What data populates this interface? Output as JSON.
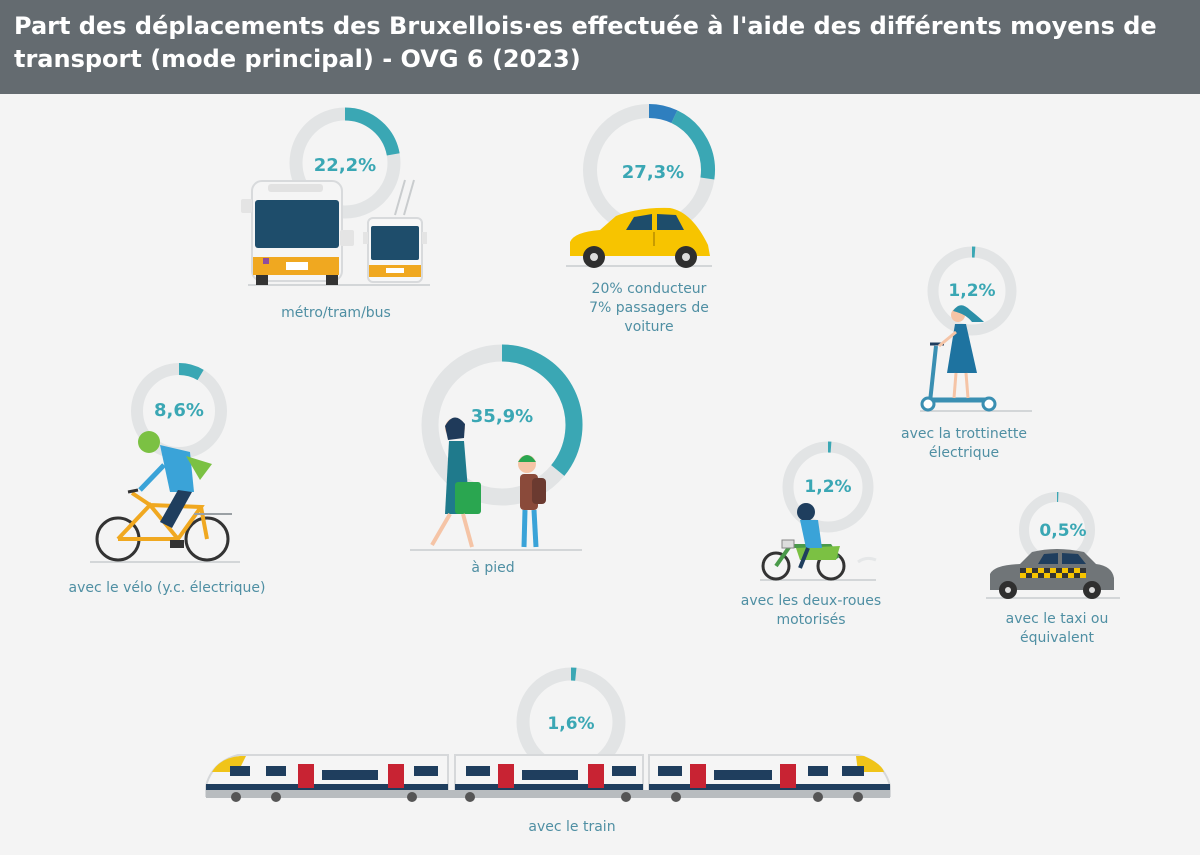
{
  "title": "Part des déplacements des Bruxellois·es effectuée à l'aide des différents moyens de transport (mode principal) - OVG 6 (2023)",
  "colors": {
    "header_bg": "#646b70",
    "ring_track": "#e2e4e5",
    "ring_fill": "#3aa7b4",
    "ring_fill_dark": "#2f7fbf",
    "label": "#3aa7b4",
    "caption": "#4f8fa3"
  },
  "chart_data": {
    "type": "donut",
    "unit": "%",
    "items": [
      {
        "key": "public",
        "value": 22.2,
        "label": "22,2%",
        "caption": [
          "métro/tram/bus"
        ],
        "icon": "bus-tram-icon"
      },
      {
        "key": "car",
        "value": 27.3,
        "label": "27,3%",
        "caption": [
          "20% conducteur",
          "7% passagers de",
          "voiture"
        ],
        "icon": "car-icon",
        "segments": [
          {
            "name": "conducteur",
            "value": 20
          },
          {
            "name": "passagers de voiture",
            "value": 7
          }
        ]
      },
      {
        "key": "scooter",
        "value": 1.2,
        "label": "1,2%",
        "caption": [
          "avec la trottinette",
          "électrique"
        ],
        "icon": "electric-scooter-icon"
      },
      {
        "key": "bike",
        "value": 8.6,
        "label": "8,6%",
        "caption": [
          "avec le vélo (y.c. électrique)"
        ],
        "icon": "bicycle-icon"
      },
      {
        "key": "walk",
        "value": 35.9,
        "label": "35,9%",
        "caption": [
          "à pied"
        ],
        "icon": "pedestrians-icon"
      },
      {
        "key": "moto",
        "value": 1.2,
        "label": "1,2%",
        "caption": [
          "avec les deux-roues",
          "motorisés"
        ],
        "icon": "motorbike-icon"
      },
      {
        "key": "taxi",
        "value": 0.5,
        "label": "0,5%",
        "caption": [
          "avec le taxi ou",
          "équivalent"
        ],
        "icon": "taxi-icon"
      },
      {
        "key": "train",
        "value": 1.6,
        "label": "1,6%",
        "caption": [
          "avec le train"
        ],
        "icon": "train-icon"
      }
    ]
  }
}
